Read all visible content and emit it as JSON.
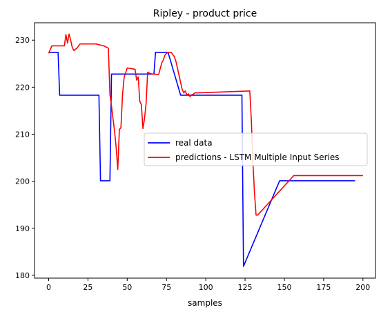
{
  "chart_data": {
    "type": "line",
    "title": "Ripley - product price",
    "xlabel": "samples",
    "ylabel": "",
    "xlim": [
      -9,
      208
    ],
    "ylim": [
      179.4,
      233.7
    ],
    "xticks": [
      0,
      25,
      50,
      75,
      100,
      125,
      150,
      175,
      200
    ],
    "yticks": [
      180,
      190,
      200,
      210,
      220,
      230
    ],
    "grid": false,
    "legend_position": "center-right",
    "series": [
      {
        "name": "real data",
        "color": "#0000ff",
        "x": [
          0,
          6,
          7,
          32,
          33,
          39,
          40,
          67,
          68,
          76,
          84,
          123,
          124,
          147,
          195
        ],
        "y": [
          227.4,
          227.4,
          218.3,
          218.3,
          200.1,
          200.1,
          222.8,
          222.8,
          227.4,
          227.4,
          218.3,
          218.3,
          181.9,
          200.1,
          200.1
        ]
      },
      {
        "name": "predictions - LSTM Multiple Input Series",
        "color": "#ff0000",
        "x": [
          0,
          2,
          10,
          11,
          12,
          13,
          14,
          15,
          16,
          18,
          20,
          25,
          30,
          35,
          38,
          39,
          40,
          41,
          42,
          43,
          44,
          45,
          46,
          47,
          48,
          50,
          55,
          56,
          57,
          58,
          59,
          60,
          61,
          62,
          63,
          64,
          65,
          66,
          70,
          72,
          73,
          74,
          75,
          76,
          77,
          78,
          80,
          81,
          82,
          83,
          84,
          85,
          86,
          87,
          88,
          89,
          90,
          91,
          92,
          93,
          95,
          128,
          129,
          130,
          131,
          132,
          133,
          156,
          200
        ],
        "y": [
          227.2,
          228.8,
          228.8,
          231.2,
          229.4,
          231.3,
          230.0,
          228.5,
          227.8,
          228.3,
          229.2,
          229.2,
          229.2,
          228.8,
          228.3,
          218.5,
          216.0,
          213.2,
          210.5,
          207.0,
          202.5,
          211.0,
          211.4,
          218.3,
          222.0,
          224.1,
          223.8,
          221.5,
          222.2,
          217.0,
          216.3,
          211.2,
          213.3,
          216.5,
          223.2,
          223.0,
          222.9,
          222.8,
          222.7,
          225.2,
          225.8,
          226.8,
          227.2,
          227.4,
          227.4,
          227.4,
          226.5,
          225.5,
          224.0,
          222.5,
          221.0,
          219.5,
          218.8,
          219.2,
          218.3,
          218.6,
          218.0,
          218.4,
          218.5,
          218.8,
          218.8,
          219.2,
          213.0,
          204.0,
          197.5,
          192.8,
          192.8,
          201.2,
          201.2
        ]
      }
    ]
  }
}
